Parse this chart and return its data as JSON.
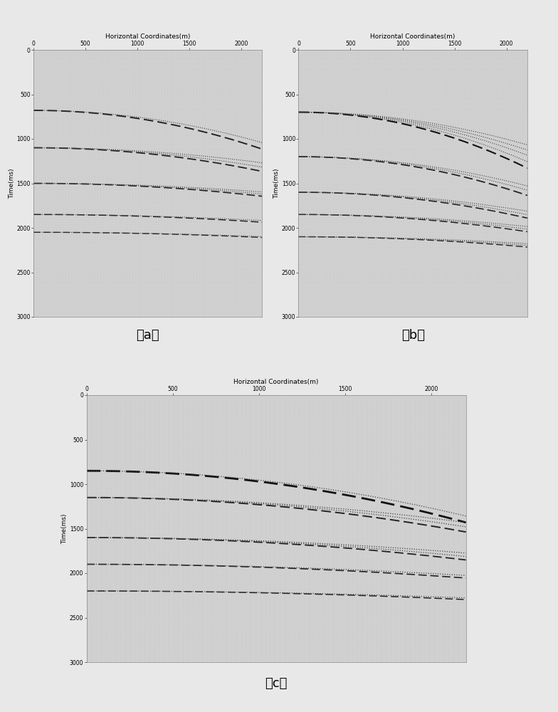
{
  "title": "Horizontal Coordinates(m)",
  "ylabel": "Time(ms)",
  "xlim_ab": [
    0,
    2200
  ],
  "xlim_c": [
    0,
    2200
  ],
  "ylim": [
    3000,
    0
  ],
  "xticks_ab": [
    0,
    500,
    1000,
    1500,
    2000
  ],
  "xticks_c": [
    0,
    500,
    1000,
    1500,
    2000
  ],
  "yticks": [
    0,
    500,
    1000,
    1500,
    2000,
    2500,
    3000
  ],
  "bg_color": "#d0d0d0",
  "fig_color": "#e8e8e8",
  "dot_color": "#bcbcbc",
  "subplot_labels": [
    "（a）",
    "（b）",
    "（c）"
  ],
  "curves_a": {
    "lines": [
      {
        "t0": 680,
        "slope": 9e-05,
        "style": "dashdot",
        "lw": 1.4,
        "color": "#222222"
      },
      {
        "t0": 680,
        "slope": 7.5e-05,
        "style": "dotted",
        "lw": 0.8,
        "color": "#444444"
      },
      {
        "t0": 1100,
        "slope": 5.5e-05,
        "style": "dashdot",
        "lw": 1.3,
        "color": "#222222"
      },
      {
        "t0": 1100,
        "slope": 4.5e-05,
        "style": "dotted",
        "lw": 0.8,
        "color": "#444444"
      },
      {
        "t0": 1100,
        "slope": 3.5e-05,
        "style": "dotted",
        "lw": 0.8,
        "color": "#444444"
      },
      {
        "t0": 1500,
        "slope": 3e-05,
        "style": "dashdot",
        "lw": 1.2,
        "color": "#222222"
      },
      {
        "t0": 1500,
        "slope": 2.5e-05,
        "style": "dotted",
        "lw": 0.8,
        "color": "#444444"
      },
      {
        "t0": 1500,
        "slope": 2e-05,
        "style": "dotted",
        "lw": 0.8,
        "color": "#444444"
      },
      {
        "t0": 1850,
        "slope": 1.8e-05,
        "style": "dashdot",
        "lw": 1.1,
        "color": "#222222"
      },
      {
        "t0": 1850,
        "slope": 1.4e-05,
        "style": "dotted",
        "lw": 0.8,
        "color": "#444444"
      },
      {
        "t0": 2050,
        "slope": 1.2e-05,
        "style": "dashdot",
        "lw": 1.0,
        "color": "#222222"
      },
      {
        "t0": 2050,
        "slope": 1e-05,
        "style": "dotted",
        "lw": 0.8,
        "color": "#444444"
      }
    ]
  },
  "curves_b": {
    "lines": [
      {
        "t0": 700,
        "slope": 0.00013,
        "style": "dashdot",
        "lw": 1.5,
        "color": "#111111"
      },
      {
        "t0": 700,
        "slope": 0.000115,
        "style": "dotted",
        "lw": 0.8,
        "color": "#444444"
      },
      {
        "t0": 700,
        "slope": 0.0001,
        "style": "dotted",
        "lw": 0.8,
        "color": "#444444"
      },
      {
        "t0": 700,
        "slope": 8.8e-05,
        "style": "dotted",
        "lw": 0.8,
        "color": "#444444"
      },
      {
        "t0": 700,
        "slope": 7.6e-05,
        "style": "dotted",
        "lw": 0.8,
        "color": "#444444"
      },
      {
        "t0": 1200,
        "slope": 9e-05,
        "style": "dashdot",
        "lw": 1.3,
        "color": "#222222"
      },
      {
        "t0": 1200,
        "slope": 7.8e-05,
        "style": "dotted",
        "lw": 0.8,
        "color": "#444444"
      },
      {
        "t0": 1200,
        "slope": 6.8e-05,
        "style": "dotted",
        "lw": 0.8,
        "color": "#444444"
      },
      {
        "t0": 1600,
        "slope": 6e-05,
        "style": "dashdot",
        "lw": 1.2,
        "color": "#222222"
      },
      {
        "t0": 1600,
        "slope": 5.2e-05,
        "style": "dotted",
        "lw": 0.8,
        "color": "#444444"
      },
      {
        "t0": 1600,
        "slope": 4.4e-05,
        "style": "dotted",
        "lw": 0.8,
        "color": "#444444"
      },
      {
        "t0": 1850,
        "slope": 4e-05,
        "style": "dashdot",
        "lw": 1.1,
        "color": "#222222"
      },
      {
        "t0": 1850,
        "slope": 3.4e-05,
        "style": "dotted",
        "lw": 0.8,
        "color": "#444444"
      },
      {
        "t0": 1850,
        "slope": 2.8e-05,
        "style": "dotted",
        "lw": 0.8,
        "color": "#444444"
      },
      {
        "t0": 2100,
        "slope": 2.4e-05,
        "style": "dashdot",
        "lw": 1.0,
        "color": "#222222"
      },
      {
        "t0": 2100,
        "slope": 2e-05,
        "style": "dotted",
        "lw": 0.8,
        "color": "#444444"
      },
      {
        "t0": 2100,
        "slope": 1.6e-05,
        "style": "dotted",
        "lw": 0.8,
        "color": "#444444"
      }
    ]
  },
  "curves_c": {
    "lines": [
      {
        "t0": 850,
        "slope": 0.00012,
        "style": "dashdot",
        "lw": 2.0,
        "color": "#111111"
      },
      {
        "t0": 850,
        "slope": 0.000105,
        "style": "dotted",
        "lw": 0.9,
        "color": "#444444"
      },
      {
        "t0": 1150,
        "slope": 8e-05,
        "style": "dashdot",
        "lw": 1.4,
        "color": "#222222"
      },
      {
        "t0": 1150,
        "slope": 6.8e-05,
        "style": "dotted",
        "lw": 0.9,
        "color": "#444444"
      },
      {
        "t0": 1150,
        "slope": 5.8e-05,
        "style": "dotted",
        "lw": 0.9,
        "color": "#444444"
      },
      {
        "t0": 1600,
        "slope": 5.2e-05,
        "style": "dashdot",
        "lw": 1.3,
        "color": "#222222"
      },
      {
        "t0": 1600,
        "slope": 4.4e-05,
        "style": "dotted",
        "lw": 0.9,
        "color": "#444444"
      },
      {
        "t0": 1600,
        "slope": 3.6e-05,
        "style": "dotted",
        "lw": 0.9,
        "color": "#444444"
      },
      {
        "t0": 1900,
        "slope": 3.2e-05,
        "style": "dashdot",
        "lw": 1.2,
        "color": "#222222"
      },
      {
        "t0": 1900,
        "slope": 2.6e-05,
        "style": "dotted",
        "lw": 0.9,
        "color": "#444444"
      },
      {
        "t0": 2200,
        "slope": 2e-05,
        "style": "dashdot",
        "lw": 1.1,
        "color": "#222222"
      },
      {
        "t0": 2200,
        "slope": 1.6e-05,
        "style": "dotted",
        "lw": 0.9,
        "color": "#444444"
      }
    ]
  }
}
